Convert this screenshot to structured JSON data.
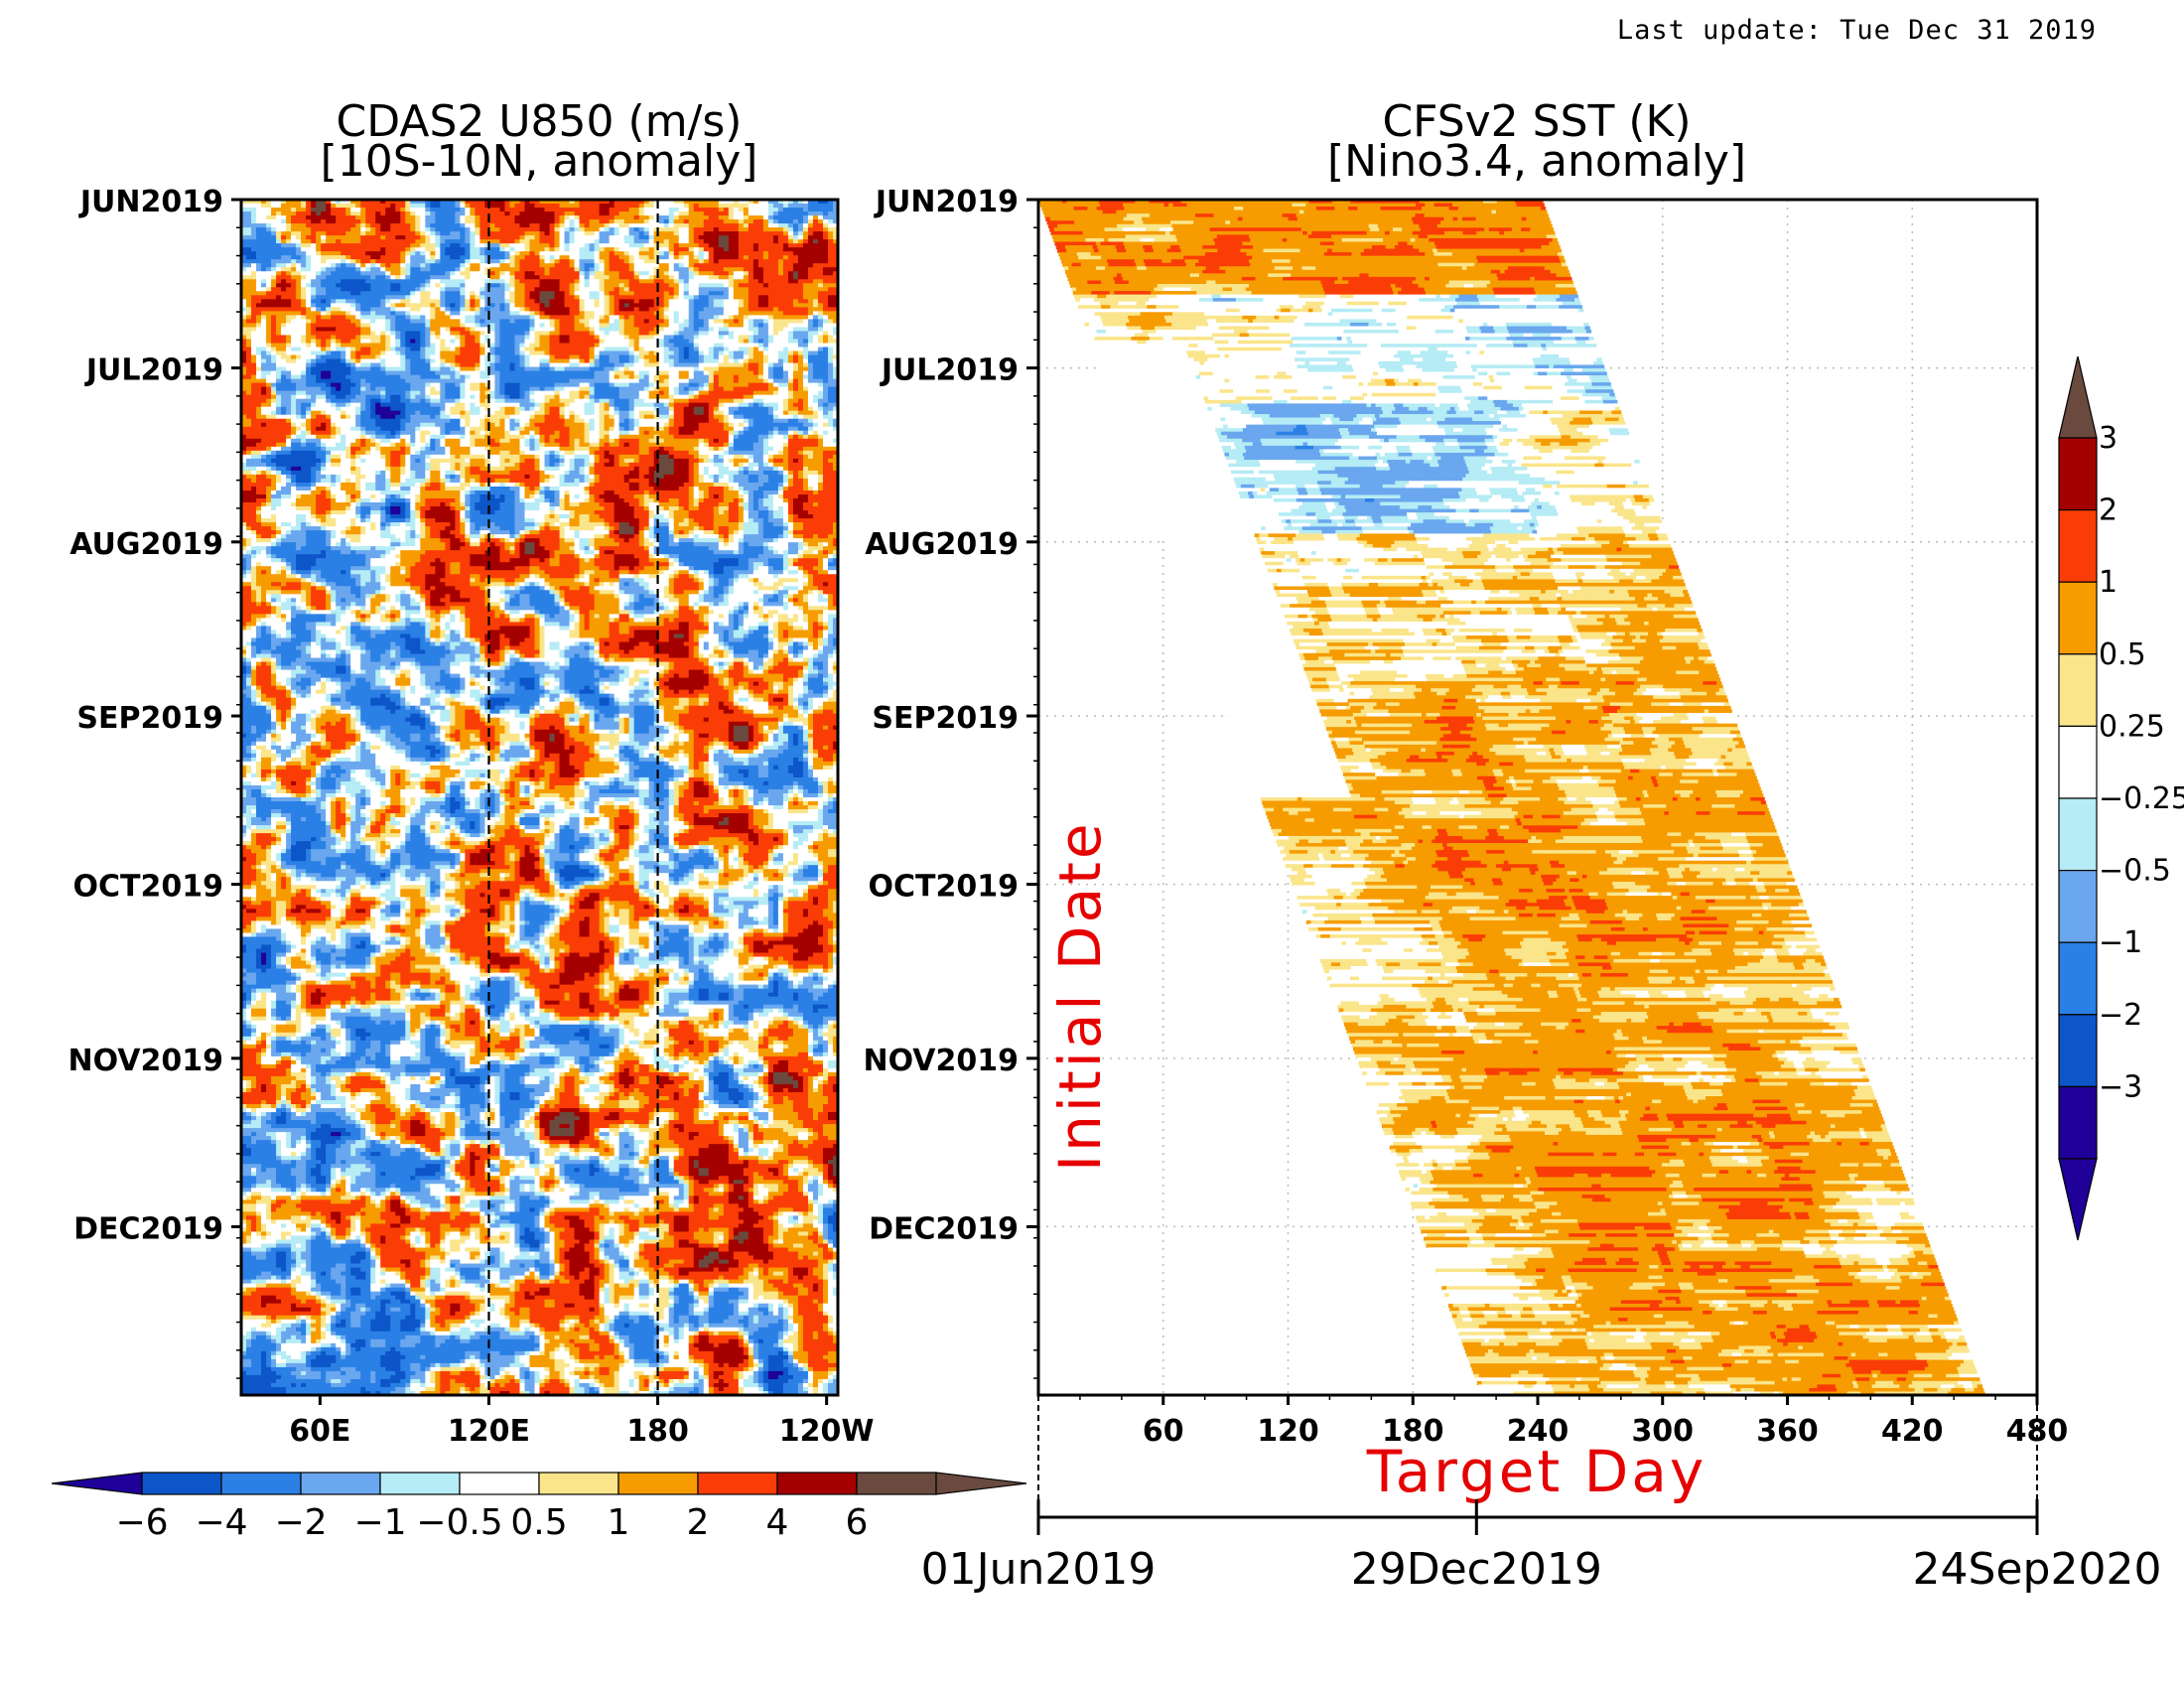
{
  "last_update": "Last update: Tue Dec 31 2019",
  "colors": {
    "dark_blue": "#1f0099",
    "blue3": "#0c56c9",
    "blue2": "#2b80e5",
    "blue1": "#6aa7ee",
    "light_blue": "#b5ecf5",
    "white": "#ffffff",
    "light_yellow": "#fae58a",
    "orange": "#f69c00",
    "red_orange": "#fa3d06",
    "dark_red": "#a40000",
    "brown": "#6a4a3e",
    "label_red": "#e60000"
  },
  "chart_data": [
    {
      "type": "heatmap",
      "title": "CDAS2 U850 (m/s)",
      "subtitle": "[10S-10N, anomaly]",
      "xlabel": "",
      "ylabel": "",
      "x_ticks": [
        "60E",
        "120E",
        "180",
        "120W"
      ],
      "x_tick_lon": [
        60,
        120,
        180,
        240
      ],
      "xlim_lon": [
        32,
        244
      ],
      "y_ticks": [
        "JUN2019",
        "JUL2019",
        "AUG2019",
        "SEP2019",
        "OCT2019",
        "NOV2019",
        "DEC2019"
      ],
      "y_tick_days": [
        0,
        30,
        61,
        92,
        122,
        153,
        183
      ],
      "ylim_days": [
        0,
        213
      ],
      "reference_lines_lon": [
        120,
        180
      ],
      "colorbar": {
        "orientation": "horizontal",
        "labels": [
          "-6",
          "-4",
          "-2",
          "-1",
          "-0.5",
          "0.5",
          "1",
          "2",
          "4",
          "6"
        ],
        "levels": [
          -6,
          -4,
          -2,
          -1,
          -0.5,
          0.5,
          1,
          2,
          4,
          6
        ]
      }
    },
    {
      "type": "heatmap",
      "title": "CFSv2 SST (K)",
      "subtitle": "[Nino3.4, anomaly]",
      "xlabel": "Target Day",
      "ylabel": "Initial Date",
      "x_ticks": [
        "60",
        "120",
        "180",
        "240",
        "300",
        "360",
        "420",
        "480"
      ],
      "x_tick_values": [
        60,
        120,
        180,
        240,
        300,
        360,
        420,
        480
      ],
      "xlim": [
        0,
        480
      ],
      "y_ticks": [
        "JUN2019",
        "JUL2019",
        "AUG2019",
        "SEP2019",
        "OCT2019",
        "NOV2019",
        "DEC2019"
      ],
      "y_tick_days": [
        0,
        30,
        61,
        92,
        122,
        153,
        183
      ],
      "ylim_days": [
        0,
        213
      ],
      "forecast_lead_days": 242,
      "date_axis": {
        "labels": [
          "01Jun2019",
          "29Dec2019",
          "24Sep2020"
        ],
        "days": [
          0,
          211,
          481
        ]
      },
      "colorbar": {
        "orientation": "vertical",
        "labels": [
          "3",
          "2",
          "1",
          "0.5",
          "0.25",
          "−0.25",
          "−0.5",
          "−1",
          "−2",
          "−3"
        ],
        "levels": [
          3,
          2,
          1,
          0.5,
          0.25,
          -0.25,
          -0.5,
          -1,
          -2,
          -3
        ]
      }
    }
  ]
}
